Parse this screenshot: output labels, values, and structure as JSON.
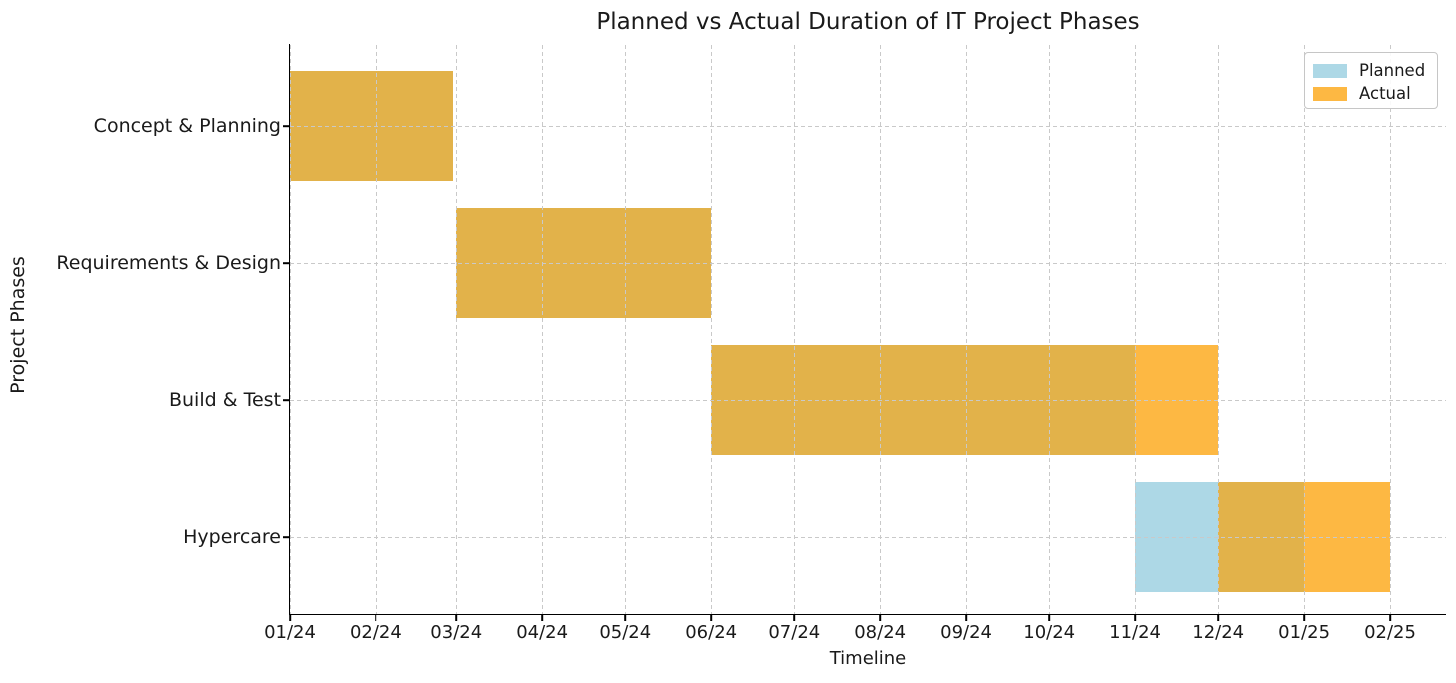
{
  "title": "Planned vs Actual Duration of IT Project Phases",
  "axes": {
    "x_label": "Timeline",
    "y_label": "Project Phases"
  },
  "legend": {
    "position": "upper-right",
    "items": [
      {
        "label": "Planned",
        "color": "#ADD8E6"
      },
      {
        "label": "Actual",
        "color": "#FDB843"
      }
    ]
  },
  "colors": {
    "planned": "#ADD8E6",
    "actual": "#FDB843",
    "overlap": "#E2B24A",
    "grid": "#C9C9C9",
    "axis": "#000000",
    "text": "#1A1A1A"
  },
  "chart_data": {
    "type": "bar",
    "subtype": "gantt-horizontal",
    "title": "Planned vs Actual Duration of IT Project Phases",
    "xlabel": "Timeline",
    "ylabel": "Project Phases",
    "x_tick_labels": [
      "01/24",
      "02/24",
      "03/24",
      "04/24",
      "05/24",
      "06/24",
      "07/24",
      "08/24",
      "09/24",
      "10/24",
      "11/24",
      "12/24",
      "01/25",
      "02/25"
    ],
    "x_axis_start": "2024-01-01",
    "categories": [
      "Concept & Planning",
      "Requirements & Design",
      "Build & Test",
      "Hypercare"
    ],
    "series": [
      {
        "name": "Planned",
        "color": "#ADD8E6",
        "ranges": [
          {
            "phase": "Concept & Planning",
            "start": "2024-01-01",
            "end": "2024-02-29"
          },
          {
            "phase": "Requirements & Design",
            "start": "2024-03-01",
            "end": "2024-06-01"
          },
          {
            "phase": "Build & Test",
            "start": "2024-06-01",
            "end": "2024-11-01"
          },
          {
            "phase": "Hypercare",
            "start": "2024-11-01",
            "end": "2025-01-01"
          }
        ]
      },
      {
        "name": "Actual",
        "color": "#FDB843",
        "ranges": [
          {
            "phase": "Concept & Planning",
            "start": "2024-01-01",
            "end": "2024-02-29"
          },
          {
            "phase": "Requirements & Design",
            "start": "2024-03-01",
            "end": "2024-06-01"
          },
          {
            "phase": "Build & Test",
            "start": "2024-06-01",
            "end": "2024-12-01"
          },
          {
            "phase": "Hypercare",
            "start": "2024-12-01",
            "end": "2025-02-01"
          }
        ]
      }
    ],
    "overlap_color": "#E2B24A",
    "grid": true,
    "grid_style": "dashed",
    "grid_above_bars": true,
    "legend_position": "upper right"
  }
}
